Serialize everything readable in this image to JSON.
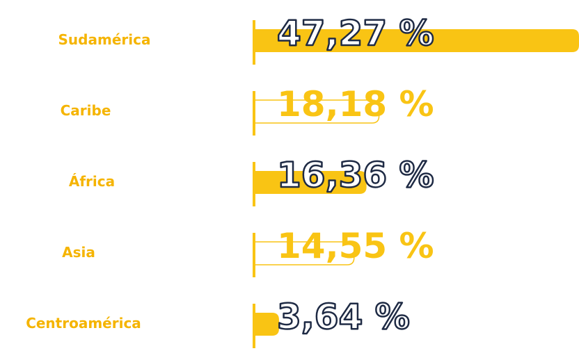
{
  "chart_data": {
    "type": "bar",
    "orientation": "horizontal",
    "categories": [
      "Sudamérica",
      "Caribe",
      "África",
      "Asia",
      "Centroamérica"
    ],
    "values": [
      47.27,
      18.18,
      16.36,
      14.55,
      3.64
    ],
    "value_labels": [
      "47,27 %",
      "18,18 %",
      "16,36 %",
      "14,55 %",
      "3,64 %"
    ],
    "color": "#f9c414"
  }
}
